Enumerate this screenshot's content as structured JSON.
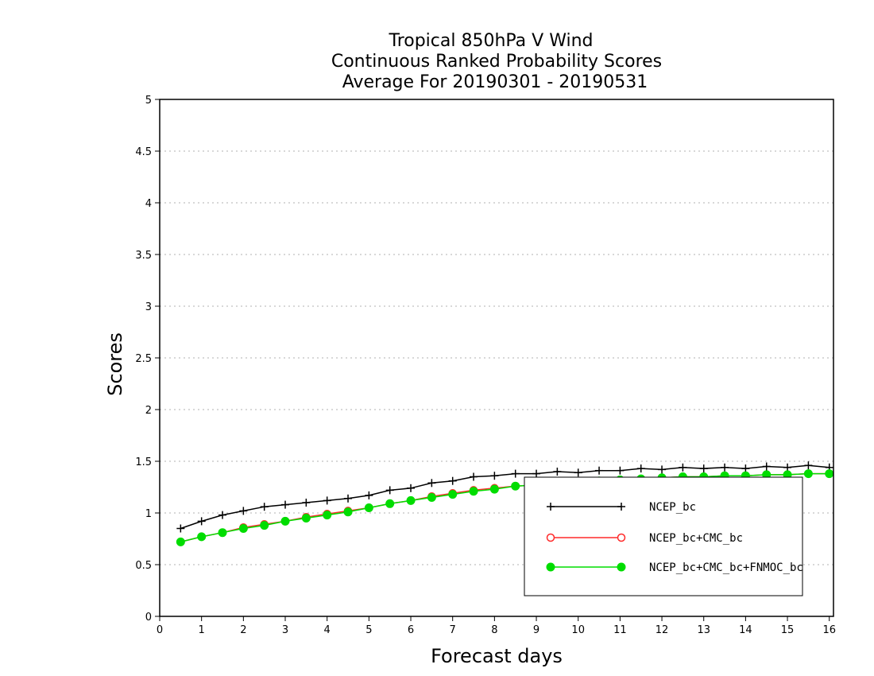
{
  "chart_data": {
    "type": "line",
    "title_lines": [
      "Tropical 850hPa V Wind",
      "Continuous Ranked Probability Scores",
      "Average For 20190301 - 20190531"
    ],
    "xlabel": "Forecast days",
    "ylabel": "Scores",
    "xlim": [
      0,
      16.1
    ],
    "ylim": [
      0,
      5
    ],
    "x_ticks": [
      0,
      1,
      2,
      3,
      4,
      5,
      6,
      7,
      8,
      9,
      10,
      11,
      12,
      13,
      14,
      15,
      16
    ],
    "y_ticks": [
      0,
      0.5,
      1,
      1.5,
      2,
      2.5,
      3,
      3.5,
      4,
      4.5,
      5
    ],
    "y_tick_labels": [
      "0",
      "0.5",
      "1",
      "1.5",
      "2",
      "2.5",
      "3",
      "3.5",
      "4",
      "4.5",
      "5"
    ],
    "grid": "dotted horizontal",
    "legend_position": "lower-right",
    "x": [
      0.5,
      1,
      1.5,
      2,
      2.5,
      3,
      3.5,
      4,
      4.5,
      5,
      5.5,
      6,
      6.5,
      7,
      7.5,
      8,
      8.5,
      9,
      9.5,
      10,
      10.5,
      11,
      11.5,
      12,
      12.5,
      13,
      13.5,
      14,
      14.5,
      15,
      15.5,
      16
    ],
    "series": [
      {
        "name": "NCEP_bc",
        "color": "#000000",
        "marker": "plus",
        "values": [
          0.85,
          0.92,
          0.98,
          1.02,
          1.06,
          1.08,
          1.1,
          1.12,
          1.14,
          1.17,
          1.22,
          1.24,
          1.29,
          1.31,
          1.35,
          1.36,
          1.38,
          1.38,
          1.4,
          1.39,
          1.41,
          1.41,
          1.43,
          1.42,
          1.44,
          1.43,
          1.44,
          1.43,
          1.45,
          1.44,
          1.46,
          1.44
        ]
      },
      {
        "name": "NCEP_bc+CMC_bc",
        "color": "#ff2a2a",
        "marker": "open-circle",
        "values": [
          0.72,
          0.77,
          0.81,
          0.86,
          0.89,
          0.92,
          0.96,
          0.99,
          1.02,
          1.05,
          1.09,
          1.12,
          1.16,
          1.19,
          1.22,
          1.24,
          1.26,
          1.27,
          1.29,
          1.3,
          1.31,
          1.32,
          1.33,
          1.34,
          1.35,
          1.35,
          1.36,
          1.36,
          1.37,
          1.37,
          1.38,
          1.38
        ]
      },
      {
        "name": "NCEP_bc+CMC_bc+FNMOC_bc",
        "color": "#00dd00",
        "marker": "filled-circle",
        "values": [
          0.72,
          0.77,
          0.81,
          0.85,
          0.88,
          0.92,
          0.95,
          0.98,
          1.01,
          1.05,
          1.09,
          1.12,
          1.15,
          1.18,
          1.21,
          1.23,
          1.26,
          1.27,
          1.29,
          1.3,
          1.31,
          1.32,
          1.33,
          1.34,
          1.35,
          1.35,
          1.36,
          1.36,
          1.37,
          1.37,
          1.38,
          1.38
        ]
      }
    ]
  }
}
